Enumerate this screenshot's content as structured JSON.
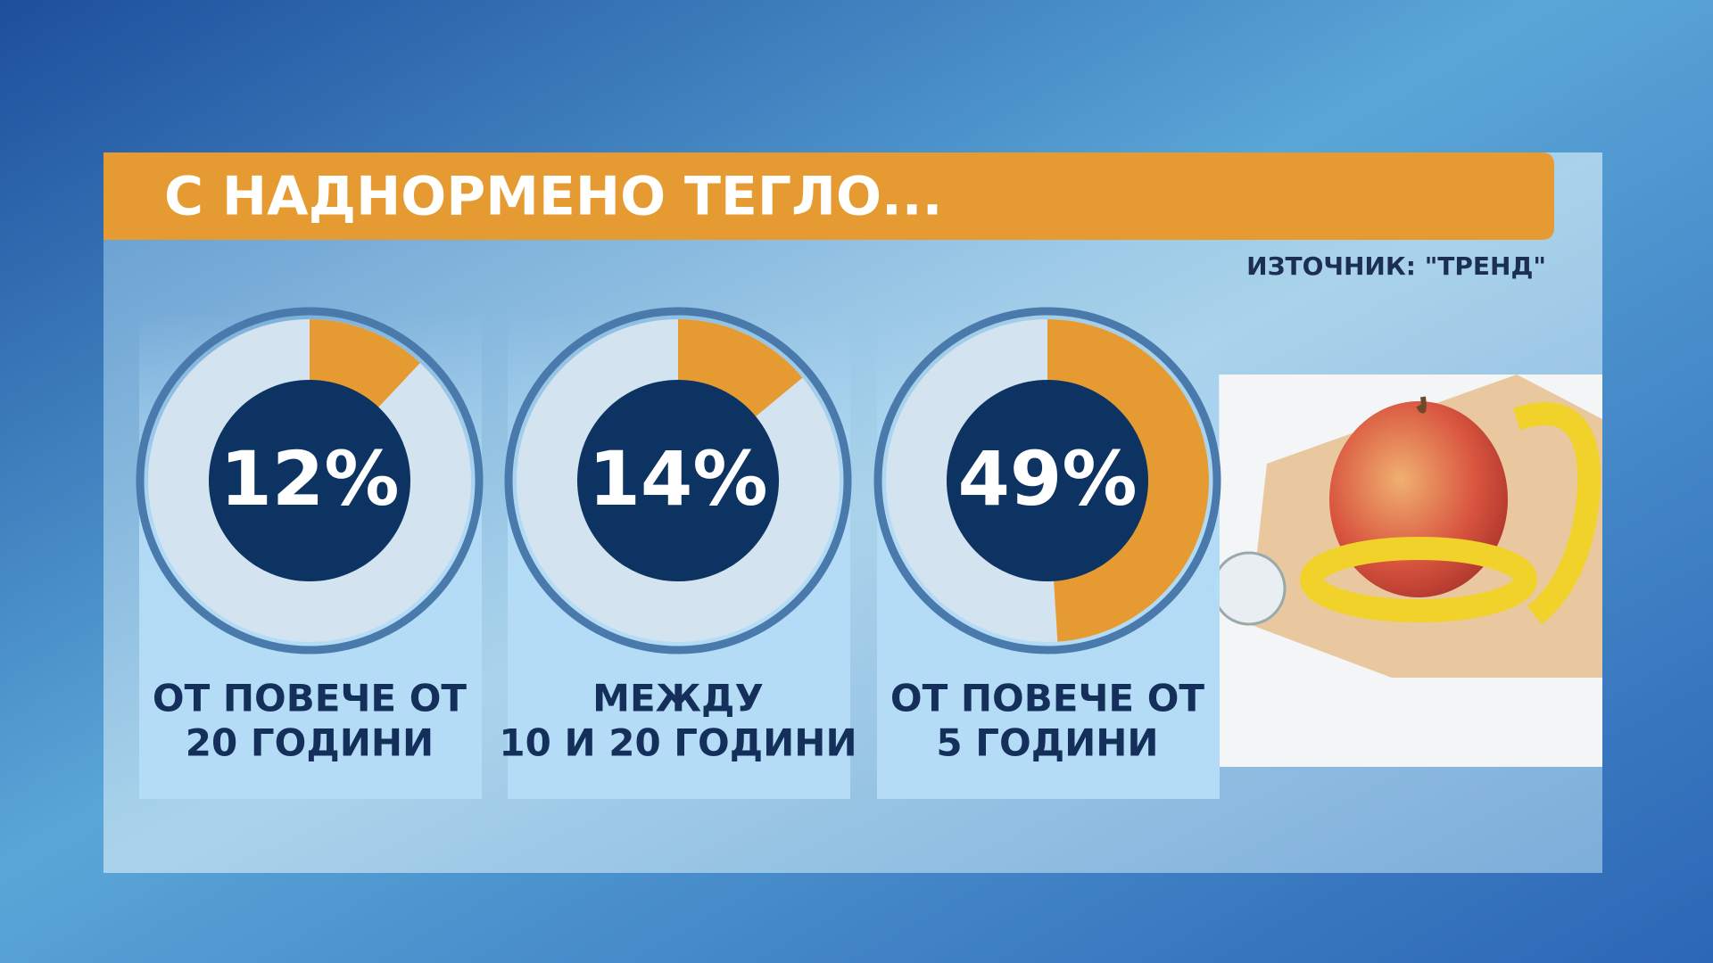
{
  "header": {
    "title": "С НАДНОРМЕНО ТЕГЛО...",
    "source": "ИЗТОЧНИК: \"ТРЕНД\""
  },
  "chart_data": [
    {
      "type": "donut",
      "values": [
        12
      ],
      "value_labels": [
        "12%"
      ],
      "color": "#e59b32",
      "label_lines": [
        "ОТ ПОВЕЧЕ ОТ",
        "20 ГОДИНИ"
      ]
    },
    {
      "type": "donut",
      "values": [
        14
      ],
      "value_labels": [
        "14%"
      ],
      "color": "#e59b32",
      "label_lines": [
        "МЕЖДУ",
        "10 И 20 ГОДИНИ"
      ]
    },
    {
      "type": "donut",
      "values": [
        49
      ],
      "value_labels": [
        "49%"
      ],
      "color": "#e59b32",
      "label_lines": [
        "ОТ ПОВЕЧЕ ОТ",
        "5 ГОДИНИ"
      ]
    }
  ]
}
